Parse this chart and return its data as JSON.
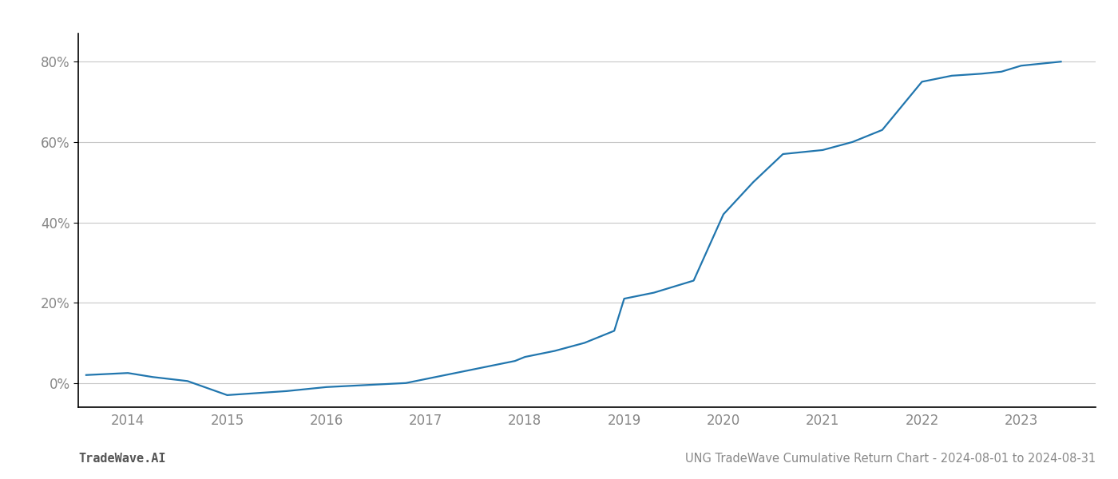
{
  "title": "UNG TradeWave Cumulative Return Chart - 2024-08-01 to 2024-08-31",
  "watermark": "TradeWave.AI",
  "line_color": "#2176ae",
  "background_color": "#ffffff",
  "grid_color": "#c8c8c8",
  "x_years": [
    2014,
    2015,
    2016,
    2017,
    2018,
    2019,
    2020,
    2021,
    2022,
    2023
  ],
  "x_data": [
    2013.58,
    2014.0,
    2014.25,
    2014.6,
    2015.0,
    2015.3,
    2015.6,
    2016.0,
    2016.4,
    2016.8,
    2017.0,
    2017.3,
    2017.6,
    2017.9,
    2018.0,
    2018.3,
    2018.6,
    2018.9,
    2019.0,
    2019.3,
    2019.5,
    2019.7,
    2020.0,
    2020.3,
    2020.6,
    2021.0,
    2021.3,
    2021.6,
    2022.0,
    2022.3,
    2022.6,
    2022.8,
    2023.0,
    2023.4
  ],
  "y_data": [
    0.02,
    0.025,
    0.015,
    0.005,
    -0.03,
    -0.025,
    -0.02,
    -0.01,
    -0.005,
    0.0,
    0.01,
    0.025,
    0.04,
    0.055,
    0.065,
    0.08,
    0.1,
    0.13,
    0.21,
    0.225,
    0.24,
    0.255,
    0.42,
    0.5,
    0.57,
    0.58,
    0.6,
    0.63,
    0.75,
    0.765,
    0.77,
    0.775,
    0.79,
    0.8
  ],
  "yticks": [
    0.0,
    0.2,
    0.4,
    0.6,
    0.8
  ],
  "ytick_labels": [
    "0%",
    "20%",
    "40%",
    "60%",
    "80%"
  ],
  "xlim": [
    2013.5,
    2023.75
  ],
  "ylim": [
    -0.06,
    0.87
  ],
  "tick_label_color": "#888888",
  "title_color": "#888888",
  "watermark_color": "#555555",
  "line_width": 1.6,
  "title_fontsize": 10.5,
  "watermark_fontsize": 11,
  "tick_fontsize": 12,
  "left_spine_color": "#000000",
  "bottom_spine_color": "#000000"
}
